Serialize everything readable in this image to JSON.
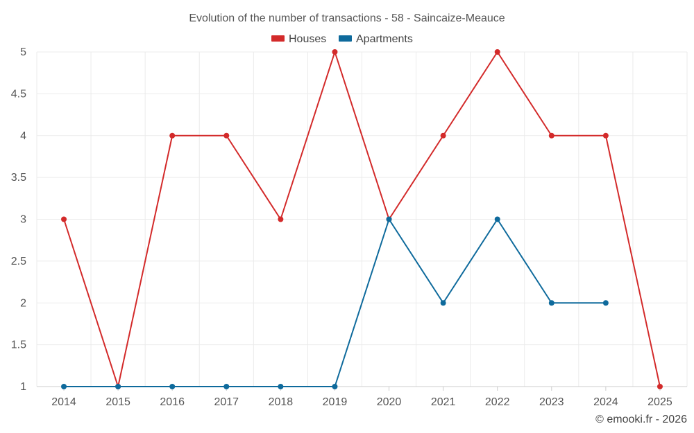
{
  "chart_data": {
    "type": "line",
    "title": "Evolution of the number of transactions - 58 - Saincaize-Meauce",
    "categories": [
      "2014",
      "2015",
      "2016",
      "2017",
      "2018",
      "2019",
      "2020",
      "2021",
      "2022",
      "2023",
      "2024",
      "2025"
    ],
    "series": [
      {
        "name": "Houses",
        "color": "#d32a2a",
        "values": [
          3,
          1,
          4,
          4,
          3,
          5,
          3,
          4,
          5,
          4,
          4,
          1
        ]
      },
      {
        "name": "Apartments",
        "color": "#0e6a9c",
        "values": [
          1,
          1,
          1,
          1,
          1,
          1,
          3,
          2,
          3,
          2,
          2,
          null
        ]
      }
    ],
    "ylim": [
      1,
      5
    ],
    "yticks": [
      1,
      1.5,
      2,
      2.5,
      3,
      3.5,
      4,
      4.5,
      5
    ],
    "ytick_labels": [
      "1",
      "1.5",
      "2",
      "2.5",
      "3",
      "3.5",
      "4",
      "4.5",
      "5"
    ],
    "grid": true,
    "legend_position": "top-center",
    "xlabel": "",
    "ylabel": ""
  },
  "credit": "© emooki.fr - 2026"
}
